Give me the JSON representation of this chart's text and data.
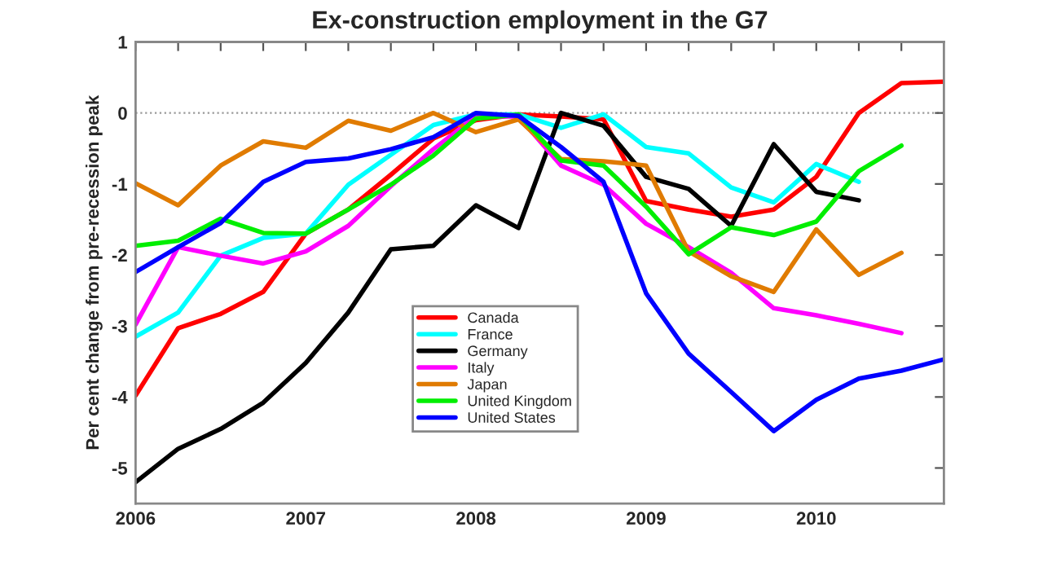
{
  "chart_data": {
    "type": "line",
    "title": "Ex-construction employment in the G7",
    "ylabel": "Per cent change from pre-recession peak",
    "x": [
      2006.0,
      2006.25,
      2006.5,
      2006.75,
      2007.0,
      2007.25,
      2007.5,
      2007.75,
      2008.0,
      2008.25,
      2008.5,
      2008.75,
      2009.0,
      2009.25,
      2009.5,
      2009.75,
      2010.0,
      2010.25,
      2010.5,
      2010.75
    ],
    "series": [
      {
        "name": "Canada",
        "color": "#ff0000",
        "values": [
          -3.98,
          -3.03,
          -2.83,
          -2.52,
          -1.7,
          -1.36,
          -0.87,
          -0.36,
          -0.1,
          -0.02,
          -0.05,
          -0.09,
          -1.24,
          -1.36,
          -1.46,
          -1.36,
          -0.9,
          0.0,
          0.42,
          0.44
        ]
      },
      {
        "name": "France",
        "color": "#00ffff",
        "values": [
          -3.15,
          -2.81,
          -2.01,
          -1.76,
          -1.7,
          -1.01,
          -0.59,
          -0.17,
          -0.02,
          -0.02,
          -0.21,
          -0.02,
          -0.48,
          -0.57,
          -1.05,
          -1.26,
          -0.72,
          -0.97,
          null,
          null
        ]
      },
      {
        "name": "Germany",
        "color": "#000000",
        "values": [
          -5.2,
          -4.73,
          -4.45,
          -4.08,
          -3.52,
          -2.81,
          -1.92,
          -1.87,
          -1.3,
          -1.62,
          0.0,
          -0.18,
          -0.9,
          -1.07,
          -1.59,
          -0.44,
          -1.11,
          -1.23,
          null,
          null
        ]
      },
      {
        "name": "Italy",
        "color": "#ff00ff",
        "values": [
          -2.98,
          -1.89,
          -2.01,
          -2.12,
          -1.95,
          -1.59,
          -1.03,
          -0.51,
          -0.05,
          -0.05,
          -0.74,
          -1.01,
          -1.56,
          -1.89,
          -2.25,
          -2.75,
          -2.85,
          -2.97,
          -3.1,
          null
        ]
      },
      {
        "name": "Japan",
        "color": "#e07b00",
        "values": [
          -0.99,
          -1.3,
          -0.74,
          -0.4,
          -0.49,
          -0.11,
          -0.25,
          0.0,
          -0.27,
          -0.09,
          -0.65,
          -0.68,
          -0.74,
          -1.95,
          -2.3,
          -2.52,
          -1.64,
          -2.28,
          -1.97,
          null
        ]
      },
      {
        "name": "United Kingdom",
        "color": "#00ee00",
        "values": [
          -1.87,
          -1.8,
          -1.49,
          -1.69,
          -1.7,
          -1.36,
          -1.01,
          -0.6,
          -0.08,
          -0.02,
          -0.67,
          -0.74,
          -1.32,
          -1.99,
          -1.61,
          -1.72,
          -1.53,
          -0.82,
          -0.46,
          null
        ]
      },
      {
        "name": "United States",
        "color": "#0000ff",
        "values": [
          -2.24,
          -1.89,
          -1.55,
          -0.97,
          -0.69,
          -0.64,
          -0.51,
          -0.34,
          0.0,
          -0.04,
          -0.48,
          -0.97,
          -2.54,
          -3.39,
          -3.93,
          -4.48,
          -4.04,
          -3.74,
          -3.63,
          -3.47
        ]
      }
    ],
    "xlim": [
      2006,
      2010.75
    ],
    "xticks": [
      2006,
      {
        "value": 2006.25,
        "label": null
      },
      {
        "value": 2006.5,
        "label": null
      },
      {
        "value": 2006.75,
        "label": null
      },
      2007,
      {
        "value": 2007.25,
        "label": null
      },
      {
        "value": 2007.5,
        "label": null
      },
      {
        "value": 2007.75,
        "label": null
      },
      2008,
      {
        "value": 2008.25,
        "label": null
      },
      {
        "value": 2008.5,
        "label": null
      },
      {
        "value": 2008.75,
        "label": null
      },
      2009,
      {
        "value": 2009.25,
        "label": null
      },
      {
        "value": 2009.5,
        "label": null
      },
      {
        "value": 2009.75,
        "label": null
      },
      2010,
      {
        "value": 2010.25,
        "label": null
      },
      {
        "value": 2010.5,
        "label": null
      }
    ],
    "ylim": [
      -5.5,
      1
    ],
    "yticks": [
      -5,
      -4,
      -3,
      -2,
      -1,
      0,
      1
    ],
    "ref_lines": [
      {
        "axis": "y",
        "value": 0,
        "color": "#999999",
        "line_style": "dotted"
      }
    ],
    "grid": false,
    "legend": "bottom",
    "marker": "none",
    "line_style": "solid"
  }
}
